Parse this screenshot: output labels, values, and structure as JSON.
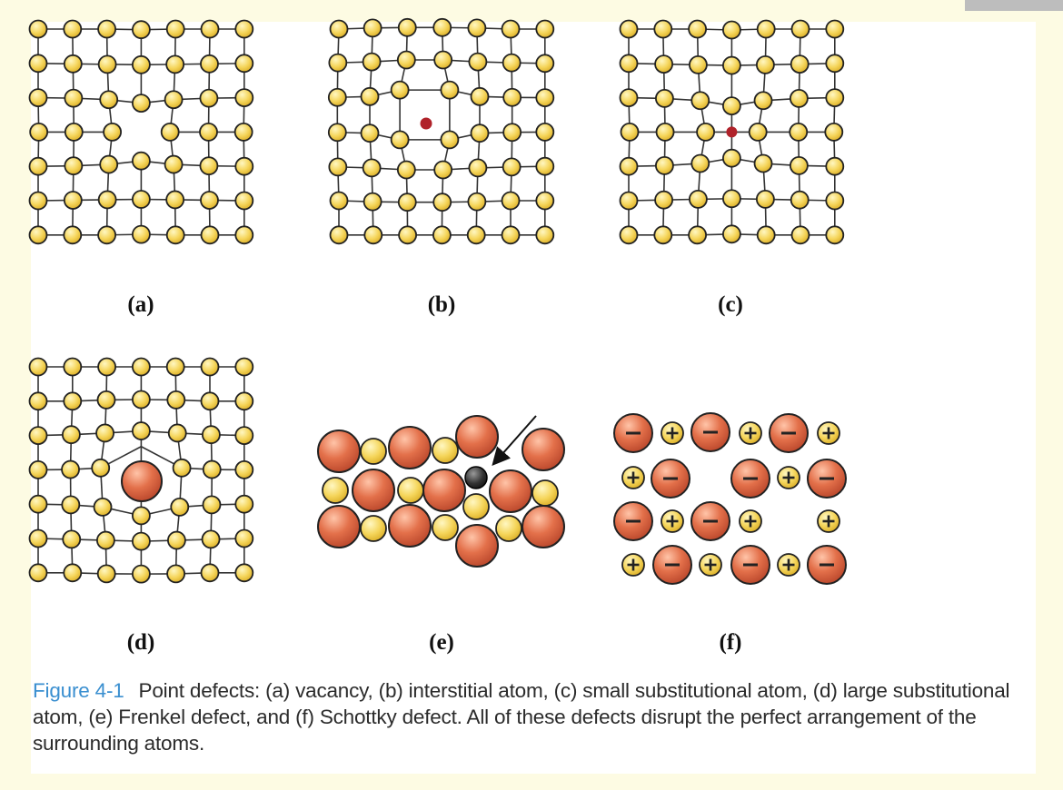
{
  "panels": {
    "a": "(a)",
    "b": "(b)",
    "c": "(c)",
    "d": "(d)",
    "e": "(e)",
    "f": "(f)"
  },
  "caption": {
    "figure_label": "Figure 4-1",
    "text": "Point defects: (a) vacancy, (b) interstitial atom, (c) small substitutional atom, (d) large substitutional atom, (e) Frenkel defect, and (f) Schottky defect. All of these defects disrupt the perfect arrangement of the surrounding atoms."
  },
  "ion_signs": {
    "cation": "+",
    "anion": "−"
  },
  "colors": {
    "small_atom": "#f5d55a",
    "large_atom": "#e3704a",
    "interstitial_atom": "#b0222a",
    "frenkel_atom": "#333333",
    "caption_label": "#3a8fd0"
  }
}
